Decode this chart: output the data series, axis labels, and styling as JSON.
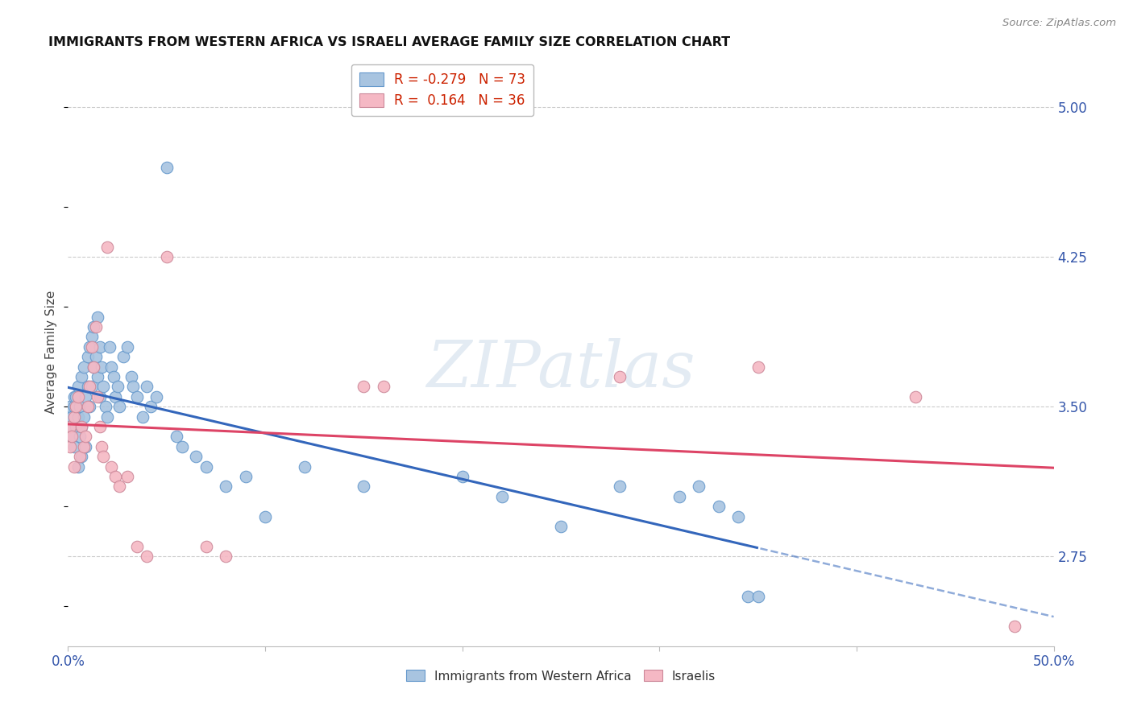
{
  "title": "IMMIGRANTS FROM WESTERN AFRICA VS ISRAELI AVERAGE FAMILY SIZE CORRELATION CHART",
  "source": "Source: ZipAtlas.com",
  "ylabel": "Average Family Size",
  "yticks": [
    2.75,
    3.5,
    4.25,
    5.0
  ],
  "xlim": [
    0.0,
    0.5
  ],
  "ylim": [
    2.3,
    5.25
  ],
  "watermark": "ZIPatlas",
  "blue_R": "-0.279",
  "blue_N": "73",
  "pink_R": "0.164",
  "pink_N": "36",
  "blue_color": "#a8c4e0",
  "blue_edge": "#6699cc",
  "pink_color": "#f5b8c4",
  "pink_edge": "#cc8899",
  "blue_line_color": "#3366bb",
  "pink_line_color": "#dd4466",
  "blue_scatter_x": [
    0.001,
    0.001,
    0.002,
    0.002,
    0.003,
    0.003,
    0.003,
    0.004,
    0.004,
    0.005,
    0.005,
    0.005,
    0.006,
    0.006,
    0.007,
    0.007,
    0.007,
    0.008,
    0.008,
    0.009,
    0.009,
    0.01,
    0.01,
    0.011,
    0.011,
    0.012,
    0.012,
    0.013,
    0.013,
    0.014,
    0.015,
    0.015,
    0.016,
    0.016,
    0.017,
    0.018,
    0.019,
    0.02,
    0.021,
    0.022,
    0.023,
    0.024,
    0.025,
    0.026,
    0.028,
    0.03,
    0.032,
    0.033,
    0.035,
    0.038,
    0.04,
    0.042,
    0.045,
    0.05,
    0.055,
    0.058,
    0.065,
    0.07,
    0.08,
    0.09,
    0.1,
    0.12,
    0.15,
    0.2,
    0.22,
    0.25,
    0.28,
    0.31,
    0.32,
    0.33,
    0.34,
    0.345,
    0.35
  ],
  "blue_scatter_y": [
    3.4,
    3.5,
    3.35,
    3.45,
    3.5,
    3.3,
    3.55,
    3.55,
    3.4,
    3.6,
    3.45,
    3.2,
    3.5,
    3.35,
    3.65,
    3.4,
    3.25,
    3.7,
    3.45,
    3.55,
    3.3,
    3.6,
    3.75,
    3.8,
    3.5,
    3.85,
    3.6,
    3.9,
    3.7,
    3.75,
    3.95,
    3.65,
    3.8,
    3.55,
    3.7,
    3.6,
    3.5,
    3.45,
    3.8,
    3.7,
    3.65,
    3.55,
    3.6,
    3.5,
    3.75,
    3.8,
    3.65,
    3.6,
    3.55,
    3.45,
    3.6,
    3.5,
    3.55,
    4.7,
    3.35,
    3.3,
    3.25,
    3.2,
    3.1,
    3.15,
    2.95,
    3.2,
    3.1,
    3.15,
    3.05,
    2.9,
    3.1,
    3.05,
    3.1,
    3.0,
    2.95,
    2.55,
    2.55
  ],
  "pink_scatter_x": [
    0.001,
    0.001,
    0.002,
    0.003,
    0.003,
    0.004,
    0.005,
    0.006,
    0.007,
    0.008,
    0.009,
    0.01,
    0.011,
    0.012,
    0.013,
    0.014,
    0.015,
    0.016,
    0.017,
    0.018,
    0.02,
    0.022,
    0.024,
    0.026,
    0.03,
    0.035,
    0.04,
    0.05,
    0.07,
    0.08,
    0.15,
    0.16,
    0.28,
    0.35,
    0.43,
    0.48
  ],
  "pink_scatter_y": [
    3.3,
    3.4,
    3.35,
    3.45,
    3.2,
    3.5,
    3.55,
    3.25,
    3.4,
    3.3,
    3.35,
    3.5,
    3.6,
    3.8,
    3.7,
    3.9,
    3.55,
    3.4,
    3.3,
    3.25,
    4.3,
    3.2,
    3.15,
    3.1,
    3.15,
    2.8,
    2.75,
    4.25,
    2.8,
    2.75,
    3.6,
    3.6,
    3.65,
    3.7,
    3.55,
    2.4
  ]
}
